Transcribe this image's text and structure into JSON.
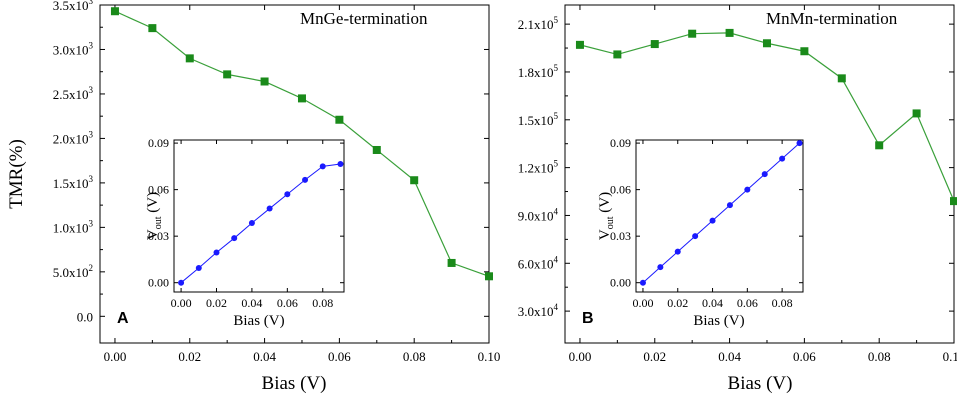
{
  "colors": {
    "main_series": "#1a8a1a",
    "main_line": "#3aa03a",
    "inset_series": "#1a1aff"
  },
  "chart_data": [
    {
      "panel": "A",
      "type": "line",
      "annotation": "MnGe-termination",
      "xlabel": "Bias (V)",
      "ylabel": "TMR(%)",
      "xlim": [
        -0.004,
        0.1
      ],
      "ylim": [
        -300,
        3500
      ],
      "x_ticks": [
        "0.00",
        "0.02",
        "0.04",
        "0.06",
        "0.08",
        "0.10"
      ],
      "x_tick_values": [
        0,
        0.02,
        0.04,
        0.06,
        0.08,
        0.1
      ],
      "y_ticks": [
        {
          "base": "0.0",
          "exp": ""
        },
        {
          "base": "5.0x10",
          "exp": "2"
        },
        {
          "base": "1.0x10",
          "exp": "3"
        },
        {
          "base": "1.5x10",
          "exp": "3"
        },
        {
          "base": "2.0x10",
          "exp": "3"
        },
        {
          "base": "2.5x10",
          "exp": "3"
        },
        {
          "base": "3.0x10",
          "exp": "3"
        },
        {
          "base": "3.5x10",
          "exp": "3"
        }
      ],
      "y_tick_values": [
        0,
        500,
        1000,
        1500,
        2000,
        2500,
        3000,
        3500
      ],
      "x": [
        0,
        0.01,
        0.02,
        0.03,
        0.04,
        0.05,
        0.06,
        0.07,
        0.08,
        0.09,
        0.1
      ],
      "values": [
        3430,
        3240,
        2900,
        2720,
        2640,
        2450,
        2210,
        1870,
        1530,
        600,
        450
      ],
      "inset": {
        "type": "line",
        "xlabel": "Bias (V)",
        "ylabel_main": "V",
        "ylabel_sub": "out",
        "ylabel_unit": " (V)",
        "xlim": [
          -0.004,
          0.092
        ],
        "ylim": [
          -0.006,
          0.092
        ],
        "x_ticks": [
          "0.00",
          "0.02",
          "0.04",
          "0.06",
          "0.08"
        ],
        "x_tick_values": [
          0,
          0.02,
          0.04,
          0.06,
          0.08
        ],
        "y_ticks": [
          "0.00",
          "0.03",
          "0.06",
          "0.09"
        ],
        "y_tick_values": [
          0,
          0.03,
          0.06,
          0.09
        ],
        "x": [
          0,
          0.01,
          0.02,
          0.03,
          0.04,
          0.05,
          0.06,
          0.07,
          0.08,
          0.09
        ],
        "values": [
          0,
          0.0095,
          0.0195,
          0.0287,
          0.0385,
          0.0478,
          0.057,
          0.0663,
          0.075,
          0.0765
        ]
      }
    },
    {
      "panel": "B",
      "type": "line",
      "annotation": "MnMn-termination",
      "xlabel": "Bias (V)",
      "ylabel": "",
      "xlim": [
        -0.004,
        0.1
      ],
      "ylim": [
        10000,
        222000
      ],
      "x_ticks": [
        "0.00",
        "0.02",
        "0.04",
        "0.06",
        "0.08",
        "0.10"
      ],
      "x_tick_values": [
        0,
        0.02,
        0.04,
        0.06,
        0.08,
        0.1
      ],
      "y_ticks": [
        {
          "base": "3.0x10",
          "exp": "4"
        },
        {
          "base": "6.0x10",
          "exp": "4"
        },
        {
          "base": "9.0x10",
          "exp": "4"
        },
        {
          "base": "1.2x10",
          "exp": "5"
        },
        {
          "base": "1.5x10",
          "exp": "5"
        },
        {
          "base": "1.8x10",
          "exp": "5"
        },
        {
          "base": "2.1x10",
          "exp": "5"
        }
      ],
      "y_tick_values": [
        30000,
        60000,
        90000,
        120000,
        150000,
        180000,
        210000
      ],
      "x": [
        0,
        0.01,
        0.02,
        0.03,
        0.04,
        0.05,
        0.06,
        0.07,
        0.08,
        0.09,
        0.1
      ],
      "values": [
        197000,
        191000,
        197500,
        204000,
        204500,
        198000,
        193000,
        176000,
        134000,
        154000,
        99000
      ],
      "inset": {
        "type": "line",
        "xlabel": "Bias (V)",
        "ylabel_main": "V",
        "ylabel_sub": "out",
        "ylabel_unit": " (V)",
        "xlim": [
          -0.004,
          0.092
        ],
        "ylim": [
          -0.006,
          0.092
        ],
        "x_ticks": [
          "0.00",
          "0.02",
          "0.04",
          "0.06",
          "0.08"
        ],
        "x_tick_values": [
          0,
          0.02,
          0.04,
          0.06,
          0.08
        ],
        "y_ticks": [
          "0.00",
          "0.03",
          "0.06",
          "0.09"
        ],
        "y_tick_values": [
          0,
          0.03,
          0.06,
          0.09
        ],
        "x": [
          0,
          0.01,
          0.02,
          0.03,
          0.04,
          0.05,
          0.06,
          0.07,
          0.08,
          0.09
        ],
        "values": [
          0,
          0.01,
          0.02,
          0.03,
          0.04,
          0.05,
          0.06,
          0.07,
          0.08,
          0.09
        ]
      }
    }
  ]
}
